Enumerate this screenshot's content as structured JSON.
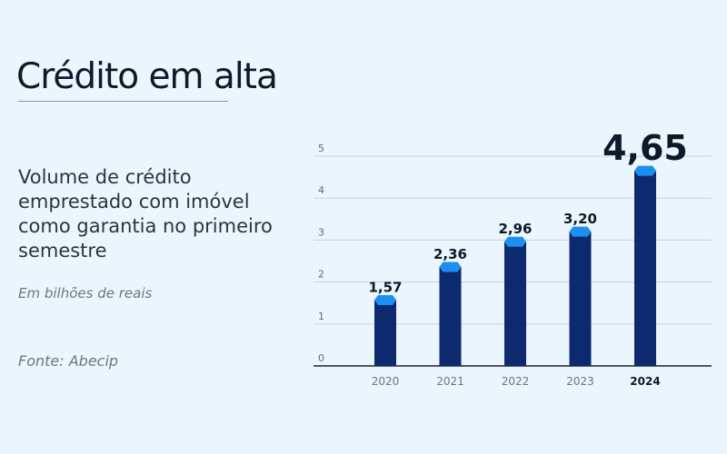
{
  "header": {
    "title": "Crédito em alta",
    "subtitle": "Volume de crédito emprestado com imóvel como garantia no primeiro semestre",
    "unit_note": "Em bilhões de reais",
    "source": "Fonte: Abecip"
  },
  "colors": {
    "background": "#eaf5fc",
    "bar": "#0e2a6e",
    "bar_cap": "#1c8ff0",
    "text_dark": "#0d1a2c",
    "text_muted": "#6b7683"
  },
  "chart_data": {
    "type": "bar",
    "categories": [
      "2020",
      "2021",
      "2022",
      "2023",
      "2024"
    ],
    "values": [
      1.57,
      2.36,
      2.96,
      3.2,
      4.65
    ],
    "value_labels": [
      "1,57",
      "2,36",
      "2,96",
      "3,20",
      "4,65"
    ],
    "highlighted_category": "2024",
    "ylim": [
      0,
      5
    ],
    "yticks": [
      0,
      1,
      2,
      3,
      4,
      5
    ],
    "ytick_labels": [
      "0",
      "1",
      "2",
      "3",
      "4",
      "5"
    ],
    "grid": true,
    "legend": "none"
  }
}
